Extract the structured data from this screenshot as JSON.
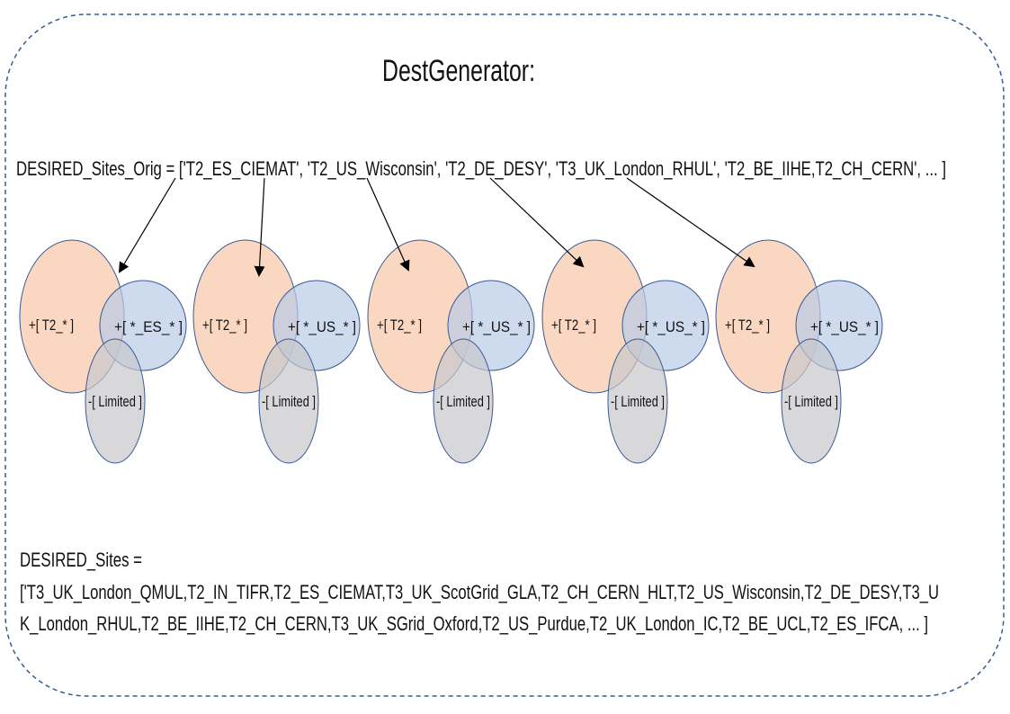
{
  "title": "DestGenerator:",
  "desired_sites_orig": "DESIRED_Sites_Orig = ['T2_ES_CIEMAT', 'T2_US_Wisconsin', 'T2_DE_DESY', 'T3_UK_London_RHUL', 'T2_BE_IIHE,T2_CH_CERN', ... ]",
  "venn_groups": [
    {
      "tier": "+[ T2_* ]",
      "country": "+[ *_ES_* ]",
      "limited": "-[ Limited ]"
    },
    {
      "tier": "+[ T2_* ]",
      "country": "+[ *_US_* ]",
      "limited": "-[ Limited ]"
    },
    {
      "tier": "+[ T2_* ]",
      "country": "+[ *_US_* ]",
      "limited": "-[ Limited ]"
    },
    {
      "tier": "+[ T2_* ]",
      "country": "+[ *_US_* ]",
      "limited": "-[ Limited ]"
    },
    {
      "tier": "+[ T2_* ]",
      "country": "+[ *_US_* ]",
      "limited": "-[ Limited ]"
    }
  ],
  "desired_sites": {
    "label": "DESIRED_Sites =",
    "line1": "['T3_UK_London_QMUL,T2_IN_TIFR,T2_ES_CIEMAT,T3_UK_ScotGrid_GLA,T2_CH_CERN_HLT,T2_US_Wisconsin,T2_DE_DESY,T3_U",
    "line2": "K_London_RHUL,T2_BE_IIHE,T2_CH_CERN,T3_UK_SGrid_Oxford,T2_US_Purdue,T2_UK_London_IC,T2_BE_UCL,T2_ES_IFCA, ... ]"
  },
  "colors": {
    "border": "#3a5a94",
    "tier_fill": "#f7c6a6",
    "country_fill": "#b9cbe6",
    "limited_fill": "#c8c8cc",
    "outline": "#3a5a94"
  }
}
